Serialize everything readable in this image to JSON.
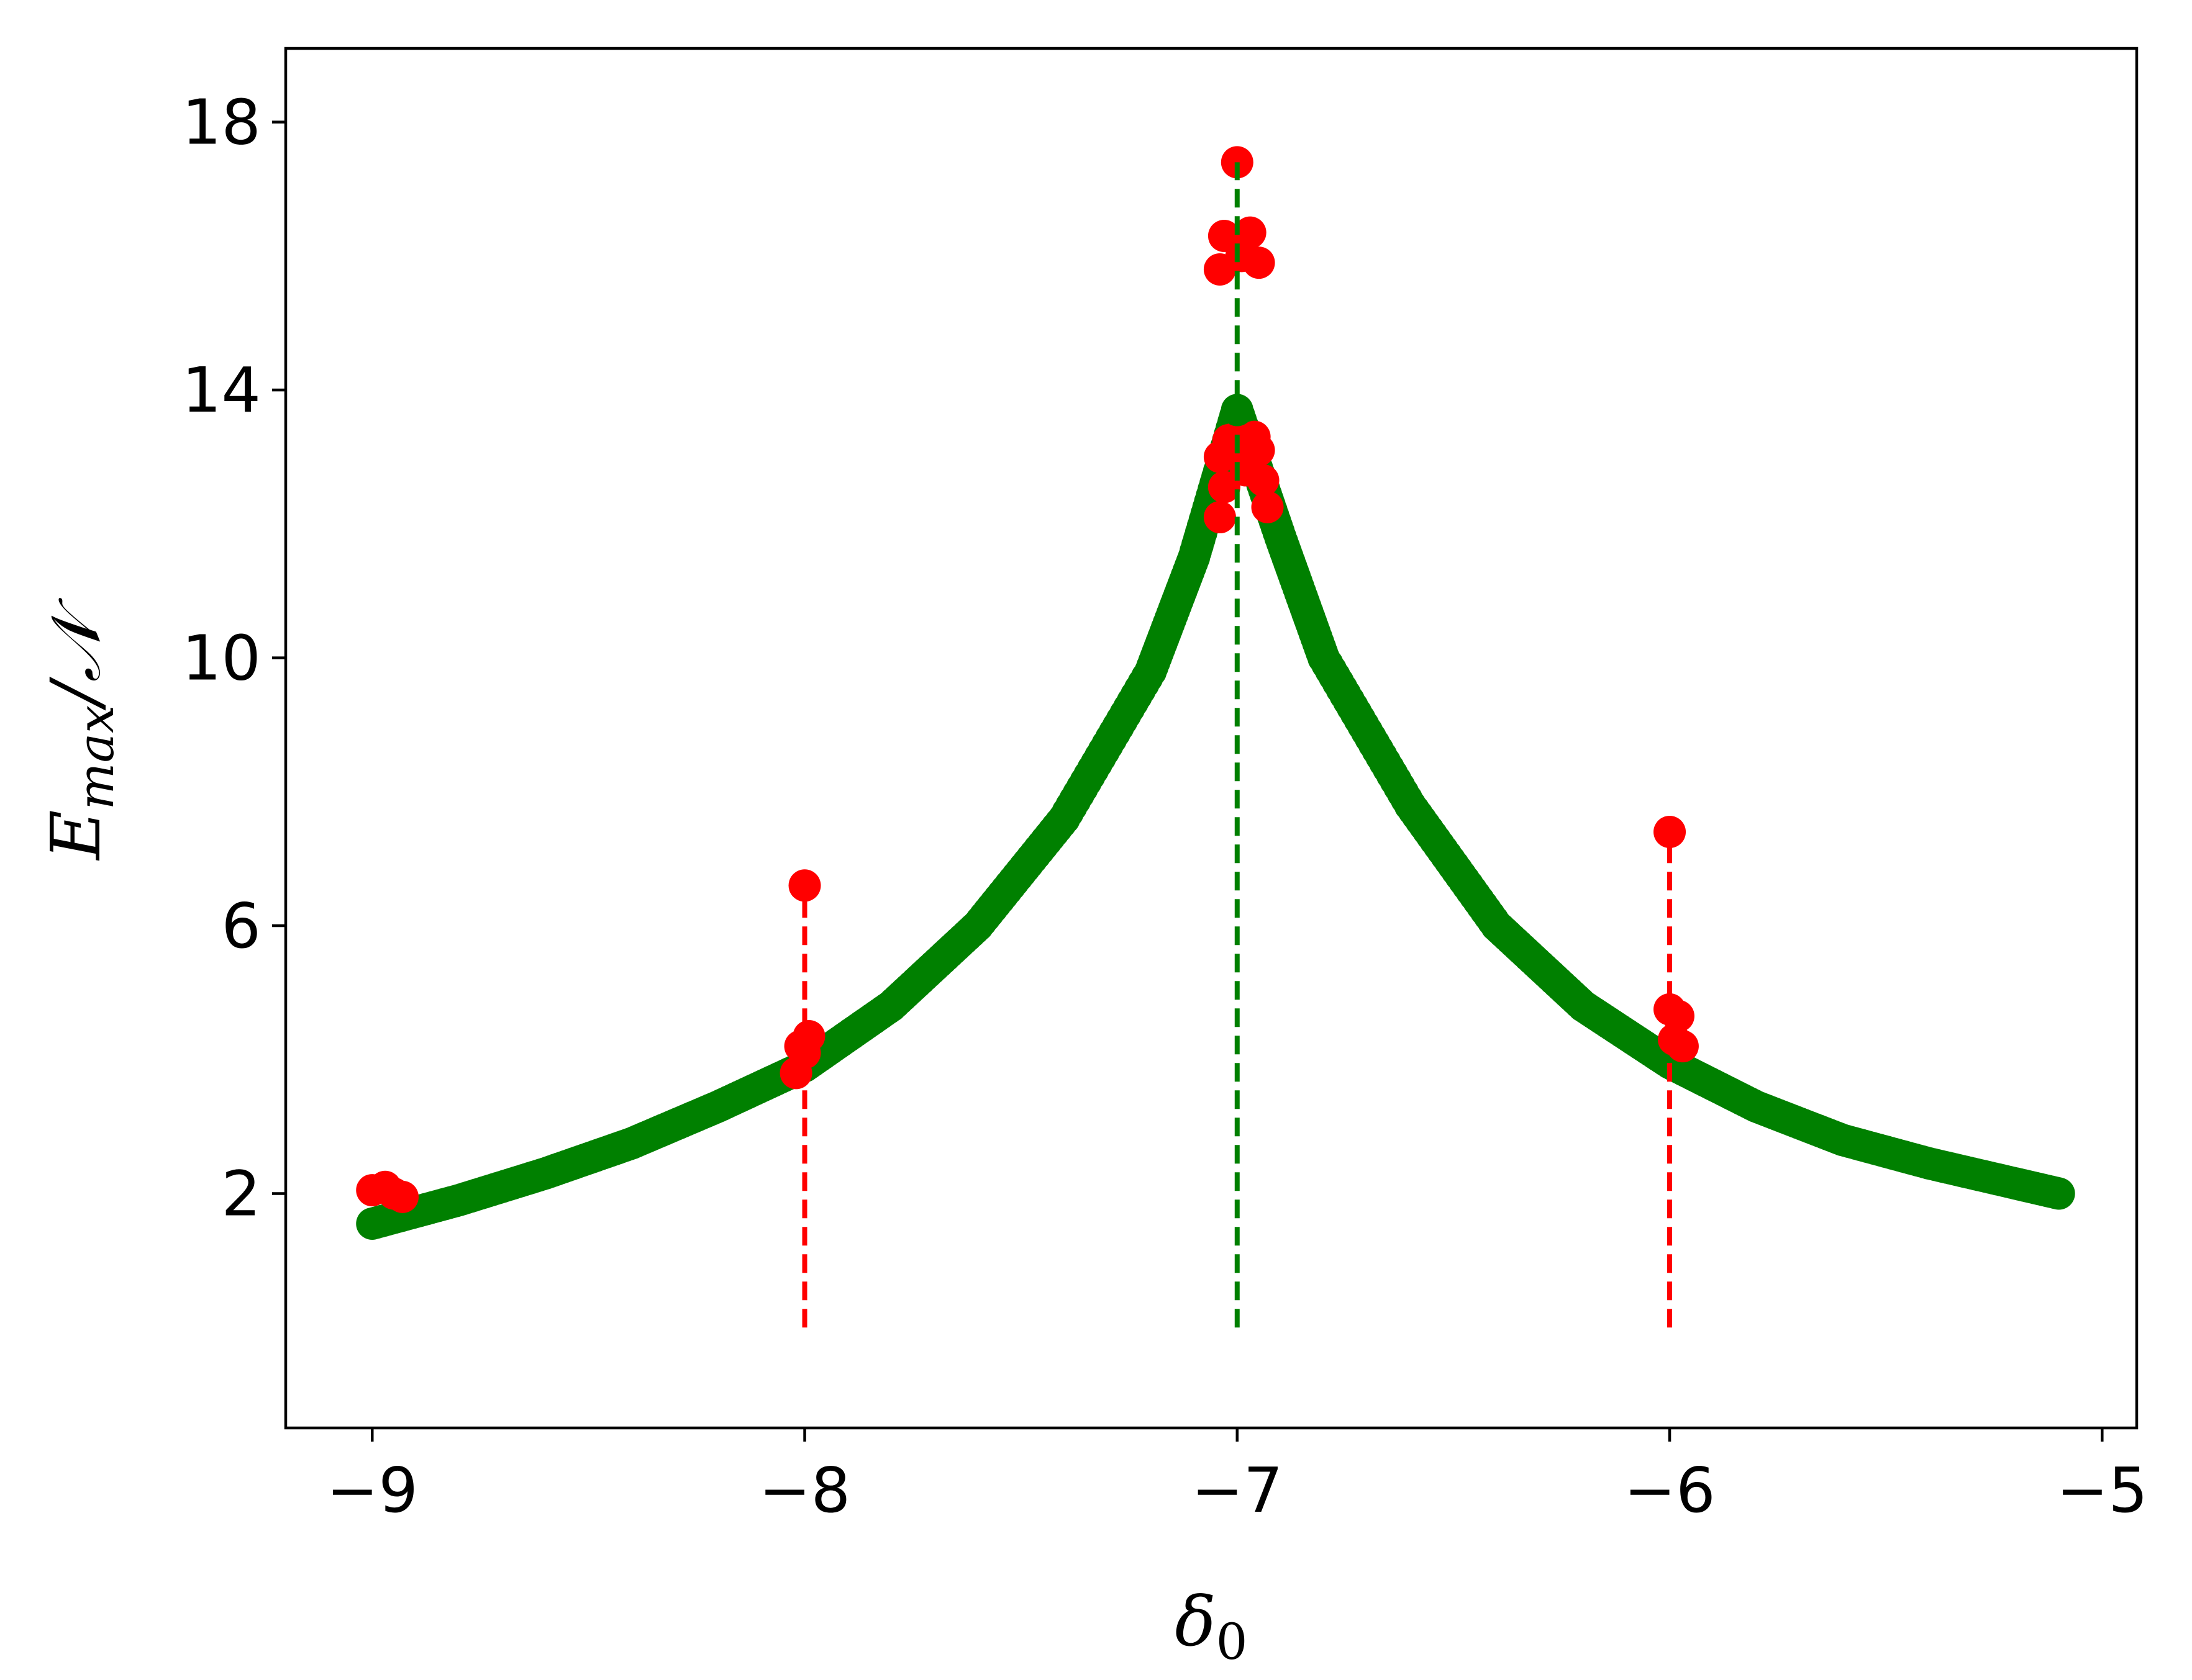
{
  "chart_data": {
    "type": "scatter",
    "title": "",
    "xlabel_main": "δ",
    "xlabel_sub": "0",
    "ylabel_main": "E",
    "ylabel_sub": "max",
    "ylabel_suffix": "/𝒩",
    "xlim": [
      -9.2,
      -4.92
    ],
    "ylim": [
      -1.5,
      19.1
    ],
    "xticks": [
      -9,
      -8,
      -7,
      -6,
      -5
    ],
    "xtick_labels": [
      "−9",
      "−8",
      "−7",
      "−6",
      "−5"
    ],
    "yticks": [
      2,
      6,
      10,
      14,
      18
    ],
    "ytick_labels": [
      "2",
      "6",
      "10",
      "14",
      "18"
    ],
    "grid": false,
    "colors": {
      "red": "#ff0000",
      "green": "#008000",
      "axis": "#000000"
    },
    "green_curve": {
      "x_range": [
        -9.0,
        -5.1
      ],
      "peak_x": -7.0,
      "peak_y": 13.7,
      "points": [
        [
          -9.0,
          1.55
        ],
        [
          -8.8,
          1.9
        ],
        [
          -8.6,
          2.3
        ],
        [
          -8.4,
          2.75
        ],
        [
          -8.2,
          3.3
        ],
        [
          -8.0,
          3.9
        ],
        [
          -7.8,
          4.8
        ],
        [
          -7.6,
          6.0
        ],
        [
          -7.4,
          7.6
        ],
        [
          -7.2,
          9.8
        ],
        [
          -7.1,
          11.5
        ],
        [
          -7.0,
          13.7
        ],
        [
          -6.9,
          11.8
        ],
        [
          -6.8,
          10.0
        ],
        [
          -6.6,
          7.8
        ],
        [
          -6.4,
          6.0
        ],
        [
          -6.2,
          4.8
        ],
        [
          -6.0,
          3.95
        ],
        [
          -5.8,
          3.3
        ],
        [
          -5.6,
          2.8
        ],
        [
          -5.4,
          2.45
        ],
        [
          -5.2,
          2.15
        ],
        [
          -5.1,
          2.0
        ]
      ]
    },
    "red_points": [
      [
        -9.0,
        2.05
      ],
      [
        -8.97,
        2.1
      ],
      [
        -8.95,
        2.0
      ],
      [
        -8.93,
        1.95
      ],
      [
        -8.02,
        3.8
      ],
      [
        -8.01,
        4.2
      ],
      [
        -8.0,
        4.1
      ],
      [
        -7.99,
        4.35
      ],
      [
        -8.0,
        6.6
      ],
      [
        -7.04,
        12.1
      ],
      [
        -7.04,
        13.0
      ],
      [
        -7.03,
        12.55
      ],
      [
        -7.02,
        13.25
      ],
      [
        -7.0,
        13.3
      ],
      [
        -6.98,
        12.8
      ],
      [
        -6.97,
        13.05
      ],
      [
        -6.96,
        13.3
      ],
      [
        -6.95,
        13.1
      ],
      [
        -6.94,
        12.65
      ],
      [
        -6.93,
        12.25
      ],
      [
        -7.04,
        15.8
      ],
      [
        -7.03,
        16.3
      ],
      [
        -6.99,
        16.0
      ],
      [
        -6.97,
        16.35
      ],
      [
        -6.95,
        15.9
      ],
      [
        -7.0,
        17.4
      ],
      [
        -6.0,
        7.4
      ],
      [
        -6.0,
        4.75
      ],
      [
        -5.98,
        4.65
      ],
      [
        -5.99,
        4.3
      ],
      [
        -5.97,
        4.2
      ]
    ],
    "dashed_lines": [
      {
        "x": -8.0,
        "y_from": 0.0,
        "y_to": 6.6,
        "color": "red"
      },
      {
        "x": -7.0,
        "y_from": 0.0,
        "y_to": 17.4,
        "color": "green"
      },
      {
        "x": -6.0,
        "y_from": 0.0,
        "y_to": 7.4,
        "color": "red"
      }
    ]
  }
}
